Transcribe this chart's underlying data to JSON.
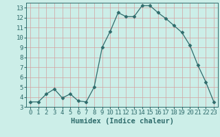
{
  "x": [
    0,
    1,
    2,
    3,
    4,
    5,
    6,
    7,
    8,
    9,
    10,
    11,
    12,
    13,
    14,
    15,
    16,
    17,
    18,
    19,
    20,
    21,
    22,
    23
  ],
  "y": [
    3.5,
    3.5,
    4.3,
    4.8,
    3.9,
    4.3,
    3.6,
    3.5,
    5.0,
    9.0,
    10.6,
    12.5,
    12.1,
    12.1,
    13.2,
    13.2,
    12.5,
    11.9,
    11.2,
    10.5,
    9.2,
    7.2,
    5.5,
    3.5
  ],
  "line_color": "#2e6b6b",
  "marker": "D",
  "marker_size": 2.5,
  "bg_color": "#cceee8",
  "grid_color": "#d4a0a0",
  "xlabel": "Humidex (Indice chaleur)",
  "xlim": [
    -0.5,
    23.5
  ],
  "ylim": [
    3,
    13.5
  ],
  "yticks": [
    3,
    4,
    5,
    6,
    7,
    8,
    9,
    10,
    11,
    12,
    13
  ],
  "xticks": [
    0,
    1,
    2,
    3,
    4,
    5,
    6,
    7,
    8,
    9,
    10,
    11,
    12,
    13,
    14,
    15,
    16,
    17,
    18,
    19,
    20,
    21,
    22,
    23
  ],
  "tick_label_fontsize": 6.5,
  "xlabel_fontsize": 7.5
}
